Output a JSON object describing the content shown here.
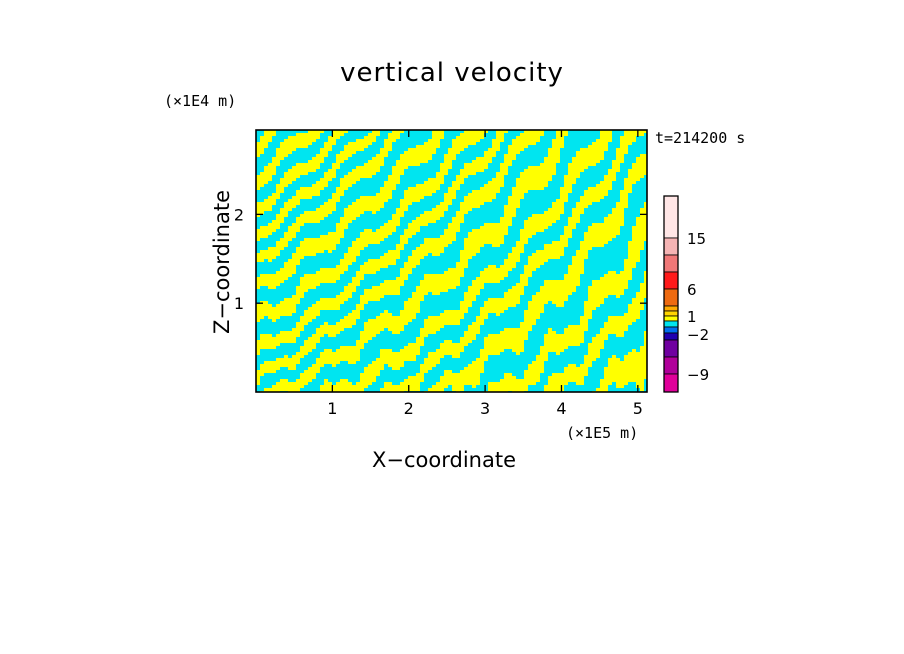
{
  "chart_data": {
    "type": "heatmap",
    "title": "vertical velocity",
    "xlabel": "X−coordinate",
    "ylabel": "Z−coordinate",
    "x_unit_label": "(×1E5 m)",
    "z_unit_label": "(×1E4 m)",
    "time_label": "t=214200 s",
    "xlim": [
      0,
      5.12
    ],
    "ylim": [
      0,
      2.95
    ],
    "x_ticks": [
      1,
      2,
      3,
      4,
      5
    ],
    "y_ticks": [
      1,
      2
    ],
    "x_tick_labels": [
      "1",
      "2",
      "3",
      "4",
      "5"
    ],
    "y_tick_labels": [
      "1",
      "2"
    ],
    "dominant_colors": {
      "positive": "#ffff00",
      "negative": "#00e5f0"
    },
    "colorbar": {
      "levels_top_to_bottom": [
        {
          "color": "#ffe6e6"
        },
        {
          "color": "#f5b4b4"
        },
        {
          "color": "#f07878"
        },
        {
          "color": "#ff1a1a"
        },
        {
          "color": "#ee6a10"
        },
        {
          "color": "#ffaa00"
        },
        {
          "color": "#ffd500"
        },
        {
          "color": "#ffff00"
        },
        {
          "color": "#00e5f0"
        },
        {
          "color": "#0070f0"
        },
        {
          "color": "#2000b0"
        },
        {
          "color": "#7000a0"
        },
        {
          "color": "#b0009a"
        },
        {
          "color": "#e0009a"
        }
      ],
      "tick_labels": [
        "15",
        "6",
        "1",
        "−2",
        "−9"
      ]
    }
  }
}
